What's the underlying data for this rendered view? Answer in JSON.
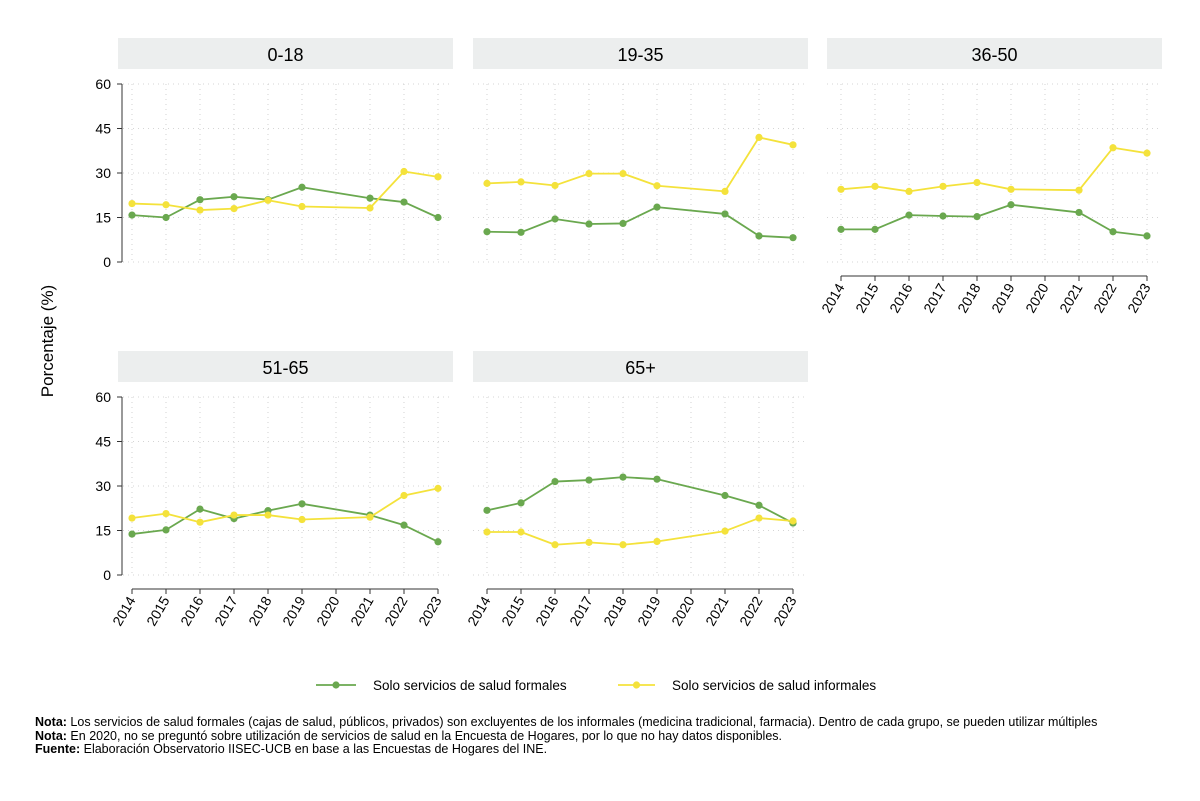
{
  "chart_data": {
    "type": "line",
    "ylabel": "Porcentaje (%)",
    "ylim": [
      0,
      60
    ],
    "yticks": [
      0,
      15,
      30,
      45,
      60
    ],
    "x": [
      "2014",
      "2015",
      "2016",
      "2017",
      "2018",
      "2019",
      "2020",
      "2021",
      "2022",
      "2023"
    ],
    "legend": {
      "placement": "bottom",
      "entries": [
        "Solo servicios de salud formales",
        "Solo servicios de salud informales"
      ]
    },
    "colors": {
      "formales": "#6aa84f",
      "informales": "#f4e23b",
      "strip": "#eceeee"
    },
    "panels": [
      {
        "title": "0-18",
        "x_axis_labels": false,
        "series": [
          {
            "name": "Solo servicios de salud formales",
            "values": [
              15.8,
              15,
              21,
              22,
              21,
              25.2,
              null,
              21.5,
              20.2,
              15
            ]
          },
          {
            "name": "Solo servicios de salud informales",
            "values": [
              19.7,
              19.3,
              17.5,
              18,
              20.8,
              18.7,
              null,
              18.2,
              30.5,
              28.7
            ]
          }
        ]
      },
      {
        "title": "19-35",
        "x_axis_labels": false,
        "series": [
          {
            "name": "Solo servicios de salud formales",
            "values": [
              10.2,
              10,
              14.5,
              12.8,
              13,
              18.5,
              null,
              16.2,
              8.8,
              8.2
            ]
          },
          {
            "name": "Solo servicios de salud informales",
            "values": [
              26.5,
              27,
              25.8,
              29.8,
              29.8,
              25.7,
              null,
              23.8,
              42,
              39.5
            ]
          }
        ]
      },
      {
        "title": "36-50",
        "x_axis_labels": true,
        "series": [
          {
            "name": "Solo servicios de salud formales",
            "values": [
              11,
              11,
              15.8,
              15.5,
              15.3,
              19.3,
              null,
              16.7,
              10.2,
              8.8
            ]
          },
          {
            "name": "Solo servicios de salud informales",
            "values": [
              24.5,
              25.5,
              23.8,
              25.5,
              26.8,
              24.5,
              null,
              24.2,
              38.5,
              36.7
            ]
          }
        ]
      },
      {
        "title": "51-65",
        "x_axis_labels": true,
        "series": [
          {
            "name": "Solo servicios de salud formales",
            "values": [
              13.8,
              15.2,
              22.2,
              19,
              21.7,
              24,
              null,
              20.2,
              16.8,
              11.2
            ]
          },
          {
            "name": "Solo servicios de salud informales",
            "values": [
              19.2,
              20.7,
              17.8,
              20.2,
              20.2,
              18.7,
              null,
              19.5,
              26.8,
              29.2
            ]
          }
        ]
      },
      {
        "title": "65+",
        "x_axis_labels": true,
        "series": [
          {
            "name": "Solo servicios de salud formales",
            "values": [
              21.8,
              24.3,
              31.5,
              32,
              33,
              32.3,
              null,
              26.8,
              23.5,
              17.5
            ]
          },
          {
            "name": "Solo servicios de salud informales",
            "values": [
              14.5,
              14.5,
              10.2,
              11,
              10.2,
              11.3,
              null,
              14.8,
              19.2,
              18.2
            ]
          }
        ]
      }
    ]
  },
  "notes": [
    {
      "label": "Nota:",
      "text": " Los servicios de salud formales (cajas de salud, públicos, privados) son excluyentes de los informales (medicina tradicional, farmacia). Dentro de cada grupo, se pueden utilizar múltiples"
    },
    {
      "label": "Nota:",
      "text": " En 2020, no se preguntó sobre utilización de servicios de salud en la Encuesta de Hogares, por lo que no hay datos disponibles."
    },
    {
      "label": "Fuente:",
      "text": " Elaboración Observatorio IISEC-UCB en base a las Encuestas de Hogares del INE."
    }
  ]
}
